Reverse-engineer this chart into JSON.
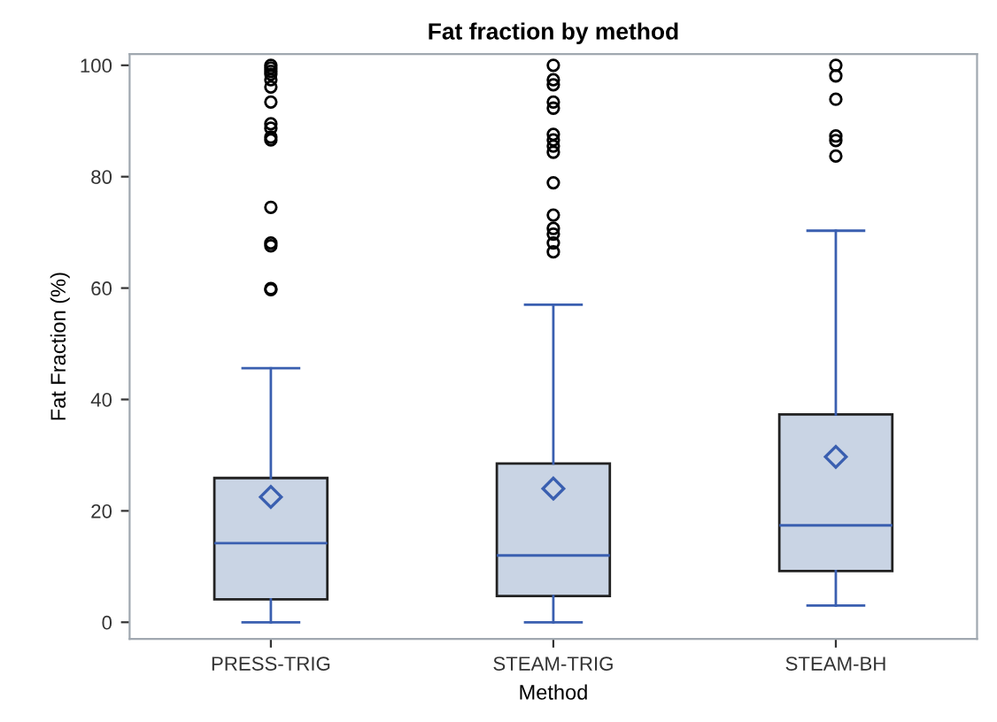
{
  "chart_data": {
    "type": "box",
    "title": "Fat fraction by method",
    "xlabel": "Method",
    "ylabel": "Fat Fraction (%)",
    "categories": [
      "PRESS-TRIG",
      "STEAM-TRIG",
      "STEAM-BH"
    ],
    "series": [
      {
        "color": "#c9d4e4",
        "boxes": [
          {
            "low": 0,
            "q1": 4.1,
            "median": 14.2,
            "q3": 25.9,
            "high": 45.6,
            "mean": 22.5,
            "outliers": [
              100,
              99.5,
              98.9,
              98.4,
              97.4,
              96.1,
              93.4,
              89.5,
              88.7,
              87.1,
              86.6,
              74.5,
              68.1,
              67.6,
              59.9,
              59.7
            ]
          },
          {
            "low": 0,
            "q1": 4.7,
            "median": 12,
            "q3": 28.5,
            "high": 57,
            "mean": 24,
            "outliers": [
              100,
              97.4,
              96.5,
              93.4,
              92.3,
              87.6,
              86.6,
              85.5,
              84.4,
              78.9,
              73.1,
              70.7,
              69.7,
              68.1,
              66.5
            ]
          },
          {
            "low": 3,
            "q1": 9.2,
            "median": 17.4,
            "q3": 37.3,
            "high": 70.3,
            "mean": 29.7,
            "outliers": [
              100,
              98.1,
              93.9,
              87.3,
              86.5,
              83.7
            ]
          }
        ]
      }
    ],
    "ylim": [
      -3,
      102
    ],
    "yticks": [
      0,
      20,
      40,
      60,
      80,
      100
    ],
    "grid": false,
    "legend": false
  }
}
